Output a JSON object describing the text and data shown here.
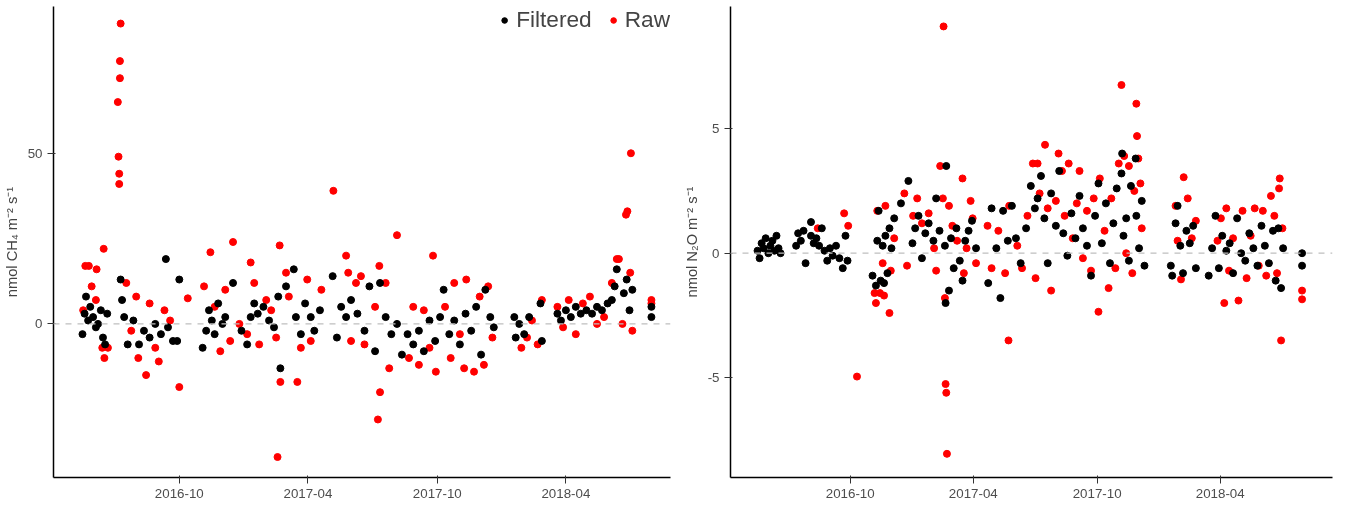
{
  "chart_data": [
    {
      "type": "scatter",
      "ylabel": "nmol CH₄ m⁻² s⁻¹",
      "xlim": [
        "2016-04-06",
        "2018-08-27"
      ],
      "ylim": [
        -45,
        93
      ],
      "xticks": [
        "2016-10",
        "2017-04",
        "2017-10",
        "2018-04"
      ],
      "yticks": [
        0,
        50
      ],
      "grid": false,
      "legend": "top",
      "marker": "circle",
      "ref_lines": [
        {
          "axis": "y",
          "value": 0,
          "color": "#bfbfbf",
          "line_style": "dashed"
        }
      ],
      "series": [
        {
          "name": "Filtered",
          "color": "#000000",
          "x": [
            "2016-05-17",
            "2016-05-20",
            "2016-05-22",
            "2016-05-25",
            "2016-05-28",
            "2016-06-01",
            "2016-06-05",
            "2016-06-08",
            "2016-06-12",
            "2016-06-15",
            "2016-06-18",
            "2016-06-21",
            "2016-07-10",
            "2016-07-12",
            "2016-07-15",
            "2016-07-20",
            "2016-07-28",
            "2016-08-05",
            "2016-08-12",
            "2016-08-20",
            "2016-08-28",
            "2016-09-05",
            "2016-09-12",
            "2016-09-15",
            "2016-09-22",
            "2016-09-28",
            "2016-10-01",
            "2016-11-03",
            "2016-11-08",
            "2016-11-12",
            "2016-11-16",
            "2016-11-20",
            "2016-11-25",
            "2016-12-01",
            "2016-12-05",
            "2016-12-16",
            "2016-12-28",
            "2017-01-05",
            "2017-01-10",
            "2017-01-15",
            "2017-01-20",
            "2017-01-28",
            "2017-02-05",
            "2017-02-12",
            "2017-02-18",
            "2017-02-21",
            "2017-03-01",
            "2017-03-12",
            "2017-03-15",
            "2017-03-22",
            "2017-03-28",
            "2017-04-05",
            "2017-04-10",
            "2017-04-18",
            "2017-05-06",
            "2017-05-12",
            "2017-05-18",
            "2017-05-25",
            "2017-06-01",
            "2017-06-10",
            "2017-06-20",
            "2017-06-27",
            "2017-07-05",
            "2017-07-12",
            "2017-07-20",
            "2017-07-28",
            "2017-08-05",
            "2017-08-12",
            "2017-08-20",
            "2017-08-28",
            "2017-09-05",
            "2017-09-12",
            "2017-09-20",
            "2017-09-28",
            "2017-10-05",
            "2017-10-10",
            "2017-10-18",
            "2017-10-25",
            "2017-11-02",
            "2017-11-10",
            "2017-11-18",
            "2017-11-25",
            "2017-12-02",
            "2017-12-08",
            "2017-12-15",
            "2017-12-20",
            "2018-01-18",
            "2018-01-20",
            "2018-01-25",
            "2018-02-01",
            "2018-02-08",
            "2018-02-24",
            "2018-02-26",
            "2018-03-20",
            "2018-03-25",
            "2018-04-01",
            "2018-04-08",
            "2018-04-15",
            "2018-04-22",
            "2018-04-30",
            "2018-05-08",
            "2018-05-15",
            "2018-05-22",
            "2018-05-30",
            "2018-06-05",
            "2018-06-09",
            "2018-06-12",
            "2018-06-22",
            "2018-06-26",
            "2018-06-30",
            "2018-07-04",
            "2018-07-31",
            "2018-07-31"
          ],
          "values": [
            -3,
            3,
            8,
            1,
            5,
            2,
            -1,
            0,
            4,
            -4,
            -6,
            3,
            13,
            7,
            2,
            -6,
            1,
            -6,
            -2,
            -4,
            0,
            -3,
            19,
            -1,
            -5,
            -5,
            13,
            -7,
            -2,
            4,
            1,
            -3,
            6,
            0,
            2,
            12,
            -2,
            -6,
            2,
            6,
            3,
            5,
            1,
            -1,
            8,
            -13,
            11,
            16,
            2,
            -3,
            6,
            2,
            -2,
            4,
            14,
            -4,
            5,
            2,
            7,
            3,
            -2,
            11,
            -8,
            12,
            2,
            -3,
            0,
            -9,
            -3,
            -6,
            -2,
            -8,
            1,
            -5,
            2,
            10,
            -3,
            1,
            -6,
            3,
            -2,
            5,
            -9,
            10,
            2,
            -1,
            2,
            -4,
            0,
            -3,
            2,
            6,
            -5,
            3,
            1,
            4,
            2,
            5,
            3,
            4,
            3,
            5,
            4,
            6,
            7,
            11,
            16,
            9,
            13,
            4,
            10,
            5,
            2
          ]
        },
        {
          "name": "Raw",
          "color": "#ff0000",
          "x": [
            "2016-05-18",
            "2016-05-21",
            "2016-05-26",
            "2016-05-30",
            "2016-06-05",
            "2016-06-06",
            "2016-06-14",
            "2016-06-17",
            "2016-06-16",
            "2016-06-22",
            "2016-07-06",
            "2016-07-07",
            "2016-07-08",
            "2016-07-08",
            "2016-07-09",
            "2016-07-09",
            "2016-07-10",
            "2016-07-18",
            "2016-07-25",
            "2016-08-01",
            "2016-08-04",
            "2016-08-15",
            "2016-08-20",
            "2016-08-28",
            "2016-09-02",
            "2016-09-10",
            "2016-09-18",
            "2016-09-25",
            "2016-10-01",
            "2016-10-13",
            "2016-11-05",
            "2016-11-14",
            "2016-11-20",
            "2016-11-28",
            "2016-12-05",
            "2016-12-12",
            "2016-12-16",
            "2016-12-25",
            "2017-01-05",
            "2017-01-10",
            "2017-01-15",
            "2017-01-22",
            "2017-02-01",
            "2017-02-08",
            "2017-02-15",
            "2017-02-20",
            "2017-02-21",
            "2017-02-17",
            "2017-03-01",
            "2017-03-05",
            "2017-03-17",
            "2017-03-22",
            "2017-03-31",
            "2017-04-05",
            "2017-04-20",
            "2017-05-07",
            "2017-05-25",
            "2017-05-28",
            "2017-06-01",
            "2017-06-08",
            "2017-06-15",
            "2017-06-20",
            "2017-07-11",
            "2017-07-05",
            "2017-07-09",
            "2017-07-12",
            "2017-07-20",
            "2017-07-25",
            "2017-08-05",
            "2017-08-22",
            "2017-08-28",
            "2017-09-05",
            "2017-09-12",
            "2017-09-20",
            "2017-09-29",
            "2017-09-25",
            "2017-10-12",
            "2017-10-20",
            "2017-10-25",
            "2017-11-02",
            "2017-11-08",
            "2017-11-11",
            "2017-11-22",
            "2017-11-30",
            "2017-12-06",
            "2017-12-12",
            "2017-12-18",
            "2018-01-28",
            "2018-02-05",
            "2018-02-12",
            "2018-02-20",
            "2018-02-26",
            "2018-03-20",
            "2018-03-28",
            "2018-04-05",
            "2018-04-15",
            "2018-04-25",
            "2018-05-05",
            "2018-05-15",
            "2018-05-25",
            "2018-06-05",
            "2018-06-12",
            "2018-06-15",
            "2018-06-20",
            "2018-06-25",
            "2018-06-27",
            "2018-07-02",
            "2018-07-01",
            "2018-07-04",
            "2018-07-31",
            "2018-07-31"
          ],
          "values": [
            4,
            17,
            17,
            11,
            7,
            16,
            -7,
            -10,
            22,
            -7,
            65,
            49,
            44,
            41,
            72,
            77,
            88,
            12,
            -2,
            8,
            -10,
            -15,
            6,
            -7,
            -11,
            4,
            1,
            null,
            -18.5,
            7.5,
            11,
            21,
            5,
            -8,
            10,
            -5,
            24,
            0,
            -3,
            18,
            12,
            -6,
            7,
            4,
            -4,
            23,
            -17,
            -39,
            15,
            8,
            -17,
            -7,
            13,
            -5,
            10,
            39,
            20,
            15,
            -5,
            12,
            14,
            -6,
            17,
            5,
            -28,
            -20,
            12,
            -13,
            26,
            -10,
            5,
            -12,
            4,
            -7,
            -14,
            20,
            5,
            -10,
            12,
            -3,
            -13,
            13,
            -14,
            8,
            -12,
            11,
            -4,
            -7,
            -4,
            1,
            -6,
            7,
            5,
            -1,
            7,
            -3,
            6,
            8,
            0,
            2,
            12,
            19,
            19,
            0,
            32,
            33,
            50,
            15,
            -2,
            7,
            6
          ]
        }
      ]
    },
    {
      "type": "scatter",
      "ylabel": "nmol N₂O m⁻² s⁻¹",
      "xlim": [
        "2016-04-07",
        "2018-09-14"
      ],
      "ylim": [
        -9,
        9.9
      ],
      "xticks": [
        "2016-10",
        "2017-04",
        "2017-10",
        "2018-04"
      ],
      "yticks": [
        -5,
        0,
        5
      ],
      "grid": false,
      "marker": "circle",
      "ref_lines": [
        {
          "axis": "y",
          "value": 0,
          "color": "#bfbfbf",
          "line_style": "dashed"
        }
      ],
      "series": [
        {
          "color": "#000000",
          "x": [
            "2016-05-17",
            "2016-05-20",
            "2016-05-23",
            "2016-05-26",
            "2016-05-29",
            "2016-06-02",
            "2016-06-05",
            "2016-06-08",
            "2016-06-11",
            "2016-06-14",
            "2016-06-17",
            "2016-06-20",
            "2016-07-13",
            "2016-07-16",
            "2016-07-20",
            "2016-07-24",
            "2016-07-27",
            "2016-08-04",
            "2016-08-04",
            "2016-08-08",
            "2016-08-12",
            "2016-08-16",
            "2016-08-20",
            "2016-08-24",
            "2016-08-28",
            "2016-09-01",
            "2016-09-05",
            "2016-09-10",
            "2016-09-15",
            "2016-09-20",
            "2016-09-24",
            "2016-09-27",
            "2016-11-03",
            "2016-11-08",
            "2016-11-10",
            "2016-11-12",
            "2016-11-15",
            "2016-11-18",
            "2016-11-20",
            "2016-11-22",
            "2016-11-25",
            "2016-11-28",
            "2016-12-01",
            "2016-12-05",
            "2016-12-15",
            "2016-12-26",
            "2017-01-01",
            "2017-01-05",
            "2017-01-10",
            "2017-01-15",
            "2017-01-20",
            "2017-01-25",
            "2017-02-01",
            "2017-02-05",
            "2017-02-10",
            "2017-02-20",
            "2017-02-18",
            "2017-02-19",
            "2017-02-24",
            "2017-02-27",
            "2017-03-03",
            "2017-03-07",
            "2017-03-12",
            "2017-03-16",
            "2017-03-20",
            "2017-03-25",
            "2017-03-30",
            "2017-04-05",
            "2017-04-23",
            "2017-04-28",
            "2017-05-05",
            "2017-05-11",
            "2017-05-15",
            "2017-05-22",
            "2017-05-28",
            "2017-06-03",
            "2017-06-10",
            "2017-06-18",
            "2017-06-25",
            "2017-07-01",
            "2017-07-05",
            "2017-07-10",
            "2017-07-15",
            "2017-07-20",
            "2017-07-25",
            "2017-08-01",
            "2017-08-06",
            "2017-08-12",
            "2017-08-18",
            "2017-08-24",
            "2017-08-30",
            "2017-09-05",
            "2017-09-10",
            "2017-09-16",
            "2017-09-22",
            "2017-09-28",
            "2017-10-03",
            "2017-10-08",
            "2017-10-14",
            "2017-10-20",
            "2017-10-25",
            "2017-10-30",
            "2017-11-07",
            "2017-11-06",
            "2017-11-09",
            "2017-11-13",
            "2017-11-17",
            "2017-11-20",
            "2017-11-27",
            "2017-11-28",
            "2017-12-02",
            "2017-12-06",
            "2017-12-10",
            "2018-01-18",
            "2018-01-20",
            "2018-01-25",
            "2018-01-28",
            "2018-02-01",
            "2018-02-05",
            "2018-02-10",
            "2018-02-15",
            "2018-02-20",
            "2018-02-24",
            "2018-03-15",
            "2018-03-20",
            "2018-03-25",
            "2018-03-30",
            "2018-04-04",
            "2018-04-10",
            "2018-04-15",
            "2018-04-20",
            "2018-04-26",
            "2018-05-02",
            "2018-05-08",
            "2018-05-14",
            "2018-05-20",
            "2018-05-26",
            "2018-06-01",
            "2018-06-06",
            "2018-06-12",
            "2018-06-18",
            "2018-06-22",
            "2018-06-26",
            "2018-06-30",
            "2018-07-03",
            "2018-07-31",
            "2018-07-31"
          ],
          "values": [
            0.1,
            -0.2,
            0.4,
            0.2,
            0.6,
            0,
            0.3,
            0.5,
            0.1,
            0.7,
            0.2,
            0,
            0.3,
            0.8,
            0.5,
            0.9,
            -0.4,
            1.25,
            0.7,
            0.4,
            0.6,
            0.3,
            1.0,
            0.1,
            -0.3,
            0.2,
            -0.1,
            0.3,
            -0.2,
            -0.6,
            0.7,
            -0.3,
            -0.9,
            -1.3,
            0.5,
            1.7,
            -1.1,
            0.3,
            -1.2,
            0.7,
            -0.8,
            1.0,
            0.2,
            1.4,
            2.0,
            2.9,
            0.4,
            1.0,
            1.5,
            -0.2,
            0.8,
            1.2,
            0.5,
            2.2,
            0.9,
            3.5,
            0.3,
            -2.0,
            -1.5,
            0.6,
            -0.6,
            1.0,
            -0.3,
            -1.1,
            0.5,
            0.9,
            1.3,
            0.2,
            -1.2,
            1.8,
            0.2,
            -1.8,
            1.7,
            0.5,
            1.9,
            0.6,
            -0.4,
            1.0,
            2.7,
            1.8,
            2.2,
            3.1,
            1.4,
            -0.4,
            2.4,
            1.1,
            3.3,
            0.8,
            -0.1,
            1.6,
            0.6,
            2.3,
            1.0,
            0.3,
            -0.9,
            1.5,
            2.8,
            0.4,
            2.0,
            -0.4,
            1.2,
            2.6,
            4.0,
            3.2,
            0.7,
            1.4,
            -0.3,
            2.7,
            3.8,
            1.5,
            0.2,
            2.1,
            -0.5,
            -0.5,
            -0.9,
            1.2,
            1.9,
            0.3,
            -0.8,
            0.9,
            0.4,
            1.1,
            -0.6,
            -0.9,
            0.2,
            1.5,
            -0.6,
            0.7,
            0.1,
            0.4,
            -0.8,
            1.4,
            0.0,
            -0.3,
            0.8,
            0.2,
            -0.5,
            1.1,
            0.3,
            -0.4,
            0.9,
            -1.1,
            1.0,
            -1.4,
            0.2,
            -0.5,
            0
          ]
        },
        {
          "color": "#ff0000",
          "x": [
            "2016-08-14",
            "2016-09-22",
            "2016-09-28",
            "2016-10-11",
            "2016-11-06",
            "2016-11-08",
            "2016-11-10",
            "2016-11-14",
            "2016-11-18",
            "2016-11-20",
            "2016-11-22",
            "2016-11-28",
            "2016-11-30",
            "2016-12-05",
            "2016-12-20",
            "2016-12-24",
            "2017-01-02",
            "2017-01-08",
            "2017-01-15",
            "2017-01-25",
            "2017-02-02",
            "2017-02-05",
            "2017-02-11",
            "2017-02-15",
            "2017-02-16",
            "2017-02-18",
            "2017-02-19",
            "2017-02-20",
            "2017-02-21",
            "2017-02-24",
            "2017-03-01",
            "2017-03-08",
            "2017-03-16",
            "2017-03-18",
            "2017-03-22",
            "2017-03-28",
            "2017-03-31",
            "2017-04-05",
            "2017-04-22",
            "2017-04-28",
            "2017-05-08",
            "2017-05-23",
            "2017-05-18",
            "2017-05-24",
            "2017-06-05",
            "2017-06-12",
            "2017-06-20",
            "2017-06-28",
            "2017-07-02",
            "2017-07-05",
            "2017-07-08",
            "2017-07-16",
            "2017-07-20",
            "2017-07-25",
            "2017-08-01",
            "2017-08-05",
            "2017-08-10",
            "2017-08-14",
            "2017-08-20",
            "2017-08-26",
            "2017-09-01",
            "2017-09-05",
            "2017-09-10",
            "2017-09-16",
            "2017-09-22",
            "2017-09-26",
            "2017-10-03",
            "2017-10-05",
            "2017-10-12",
            "2017-10-18",
            "2017-10-22",
            "2017-10-28",
            "2017-11-02",
            "2017-11-06",
            "2017-11-10",
            "2017-11-13",
            "2017-11-17",
            "2017-11-22",
            "2017-11-25",
            "2017-11-28",
            "2017-11-29",
            "2017-12-01",
            "2017-12-04",
            "2017-12-06",
            "2018-01-25",
            "2018-01-28",
            "2018-02-02",
            "2018-02-06",
            "2018-02-12",
            "2018-02-18",
            "2018-02-24",
            "2018-03-28",
            "2018-04-02",
            "2018-04-07",
            "2018-04-10",
            "2018-04-14",
            "2018-04-20",
            "2018-04-28",
            "2018-05-04",
            "2018-05-10",
            "2018-05-16",
            "2018-05-22",
            "2018-05-28",
            "2018-06-03",
            "2018-06-08",
            "2018-06-15",
            "2018-06-20",
            "2018-06-24",
            "2018-06-27",
            "2018-06-28",
            "2018-06-30",
            "2018-07-02",
            "2018-07-31",
            "2018-07-31"
          ],
          "values": [
            1.0,
            1.6,
            1.1,
            -4.95,
            -1.6,
            -2.0,
            1.7,
            -1.6,
            -0.4,
            -1.7,
            1.9,
            -2.4,
            -0.7,
            0.6,
            2.4,
            -0.5,
            1.5,
            2.2,
            1.2,
            1.6,
            0.2,
            -0.7,
            3.5,
            2.2,
            9.1,
            -1.8,
            -5.25,
            -5.6,
            -8.05,
            1.9,
            1.1,
            0.5,
            3.0,
            -0.8,
            0.2,
            2.1,
            1.4,
            -0.4,
            1.1,
            -0.6,
            0.9,
            -3.5,
            -0.8,
            1.9,
            0.3,
            -0.6,
            1.5,
            3.6,
            -1.0,
            3.6,
            2.4,
            4.35,
            1.8,
            -1.5,
            2.1,
            4.0,
            3.3,
            1.5,
            3.6,
            0.6,
            2.0,
            3.3,
            -0.2,
            1.7,
            -0.7,
            2.2,
            -2.35,
            3.0,
            0.9,
            -1.4,
            2.2,
            -0.6,
            3.6,
            6.75,
            3.9,
            0.0,
            3.5,
            -0.8,
            2.5,
            6.0,
            4.7,
            3.8,
            2.8,
            1.0,
            1.9,
            0.5,
            -1.05,
            3.05,
            2.2,
            0.6,
            1.3,
            0.5,
            1.4,
            -2.0,
            1.8,
            -0.7,
            0.6,
            -1.9,
            1.7,
            -1.0,
            0.7,
            1.8,
            -0.5,
            1.7,
            -0.9,
            2.3,
            1.5,
            -0.8,
            2.6,
            3.0,
            -3.5,
            1.0,
            -1.5,
            -1.85
          ]
        }
      ]
    }
  ]
}
